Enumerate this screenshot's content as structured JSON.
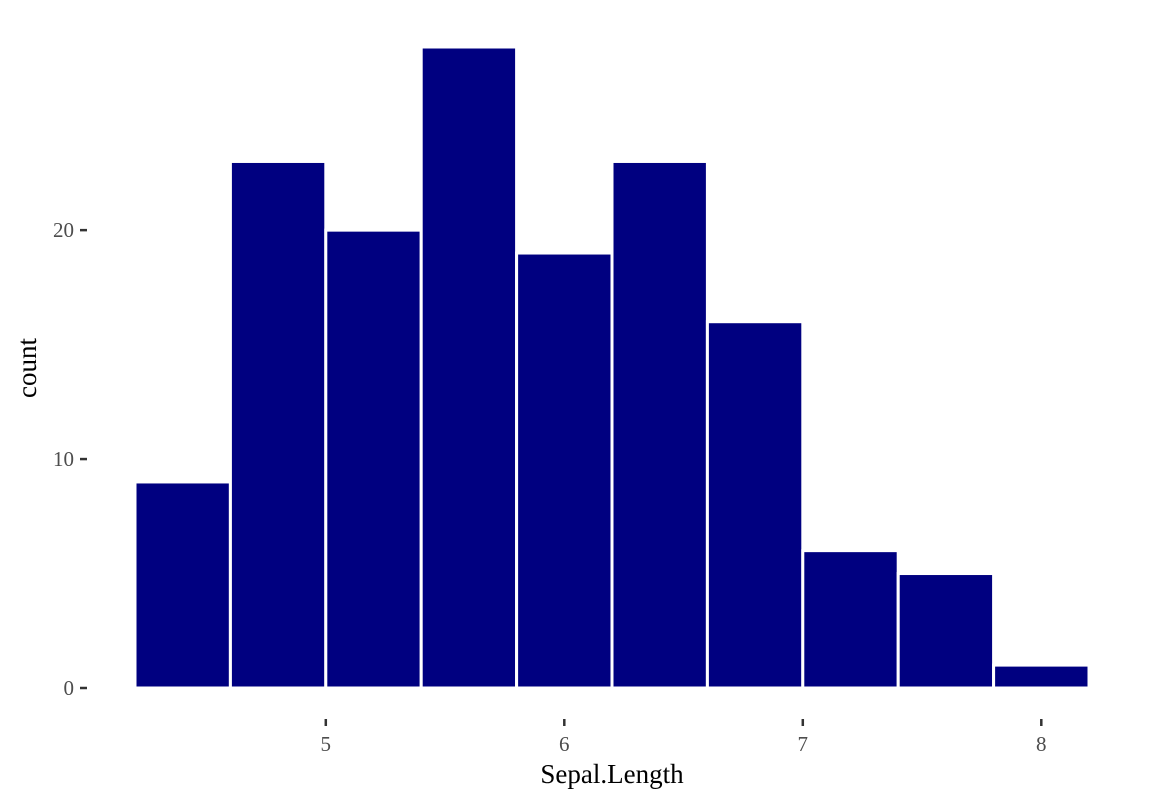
{
  "chart_data": {
    "type": "bar",
    "subtype": "histogram",
    "bins": [
      {
        "start": 4.2,
        "end": 4.6,
        "count": 9
      },
      {
        "start": 4.6,
        "end": 5.0,
        "count": 23
      },
      {
        "start": 5.0,
        "end": 5.4,
        "count": 20
      },
      {
        "start": 5.4,
        "end": 5.8,
        "count": 28
      },
      {
        "start": 5.8,
        "end": 6.2,
        "count": 19
      },
      {
        "start": 6.2,
        "end": 6.6,
        "count": 23
      },
      {
        "start": 6.6,
        "end": 7.0,
        "count": 16
      },
      {
        "start": 7.0,
        "end": 7.4,
        "count": 6
      },
      {
        "start": 7.4,
        "end": 7.8,
        "count": 5
      },
      {
        "start": 7.8,
        "end": 8.2,
        "count": 1
      }
    ],
    "xlabel": "Sepal.Length",
    "ylabel": "count",
    "xlim": [
      4.2,
      8.2
    ],
    "ylim": [
      0,
      28
    ],
    "x_ticks": [
      5,
      6,
      7,
      8
    ],
    "y_ticks": [
      0,
      10,
      20
    ],
    "grid": false,
    "colors": {
      "bar_fill": "#000080",
      "bar_outline": "#ffffff",
      "background": "#ffffff"
    }
  }
}
